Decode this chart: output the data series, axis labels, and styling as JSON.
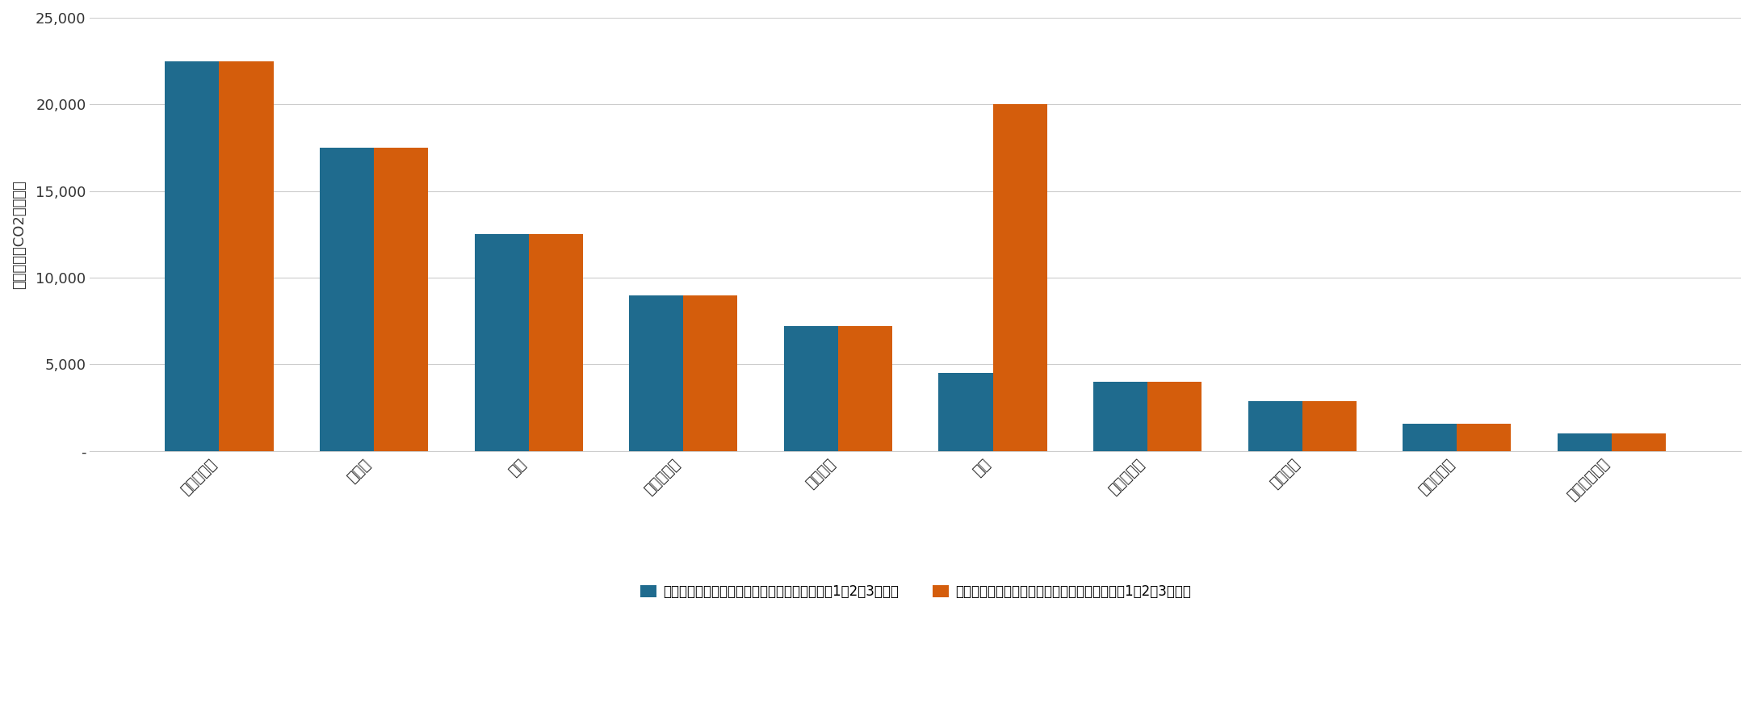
{
  "categories": [
    "エネルギー",
    "資本財",
    "素材",
    "一般消費財",
    "公益事業",
    "金融",
    "生活必需品",
    "情報技術",
    "ヘルスケア",
    "通信サービス"
  ],
  "blue_values": [
    22500,
    17500,
    12500,
    9000,
    7200,
    4500,
    4000,
    2900,
    1600,
    1000
  ],
  "orange_values": [
    22500,
    17500,
    12500,
    9000,
    7200,
    20000,
    4000,
    2900,
    1600,
    1000
  ],
  "blue_color": "#1F6B8E",
  "orange_color": "#D45D0C",
  "ylabel": "百万トン－CO2換算／年",
  "ylim": [
    0,
    25000
  ],
  "yticks": [
    0,
    5000,
    10000,
    15000,
    20000,
    25000
  ],
  "legend_blue": "ファイナンスド・エミッションを除くスコープ1、2、3排出量",
  "legend_orange": "ファイナンスド・エミッションを含むスコープ1、2、3排出量",
  "bar_width": 0.35,
  "background_color": "#ffffff",
  "grid_color": "#cccccc",
  "label_color": "#333333",
  "fontsize_ticks": 13,
  "fontsize_ylabel": 13,
  "fontsize_legend": 12
}
